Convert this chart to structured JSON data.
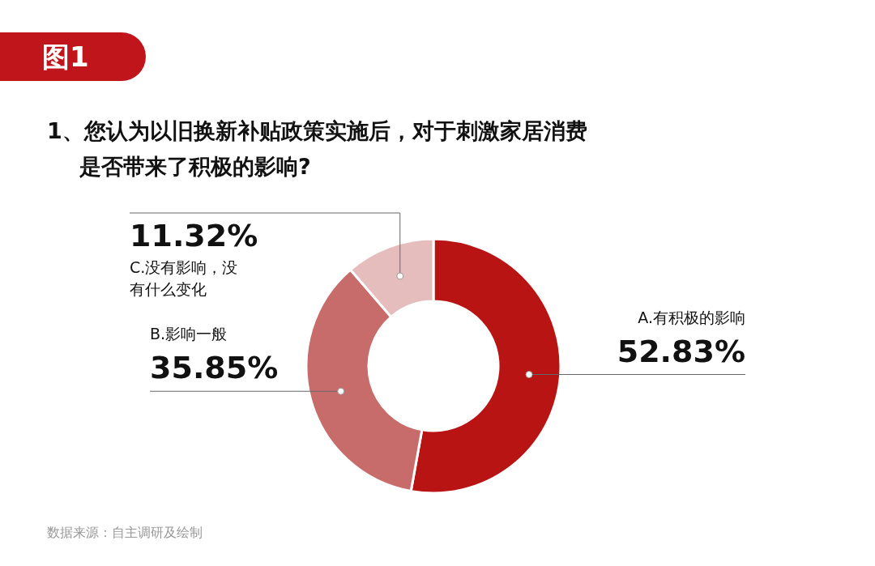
{
  "chart_data": {
    "type": "donut",
    "title": "1、您认为以旧换新补贴政策实施后，对于刺激家居消费是否带来了积极的影响?",
    "categories": [
      "A.有积极的影响",
      "B.影响一般",
      "C.没有影响，没有什么变化"
    ],
    "values": [
      52.83,
      35.85,
      11.32
    ],
    "value_labels": [
      "52.83%",
      "35.85%",
      "11.32%"
    ],
    "colors": [
      "#b81414",
      "#c86b6b",
      "#e6bdbd"
    ],
    "annotations": [
      "图1",
      "数据来源：自主调研及绘制"
    ]
  }
}
